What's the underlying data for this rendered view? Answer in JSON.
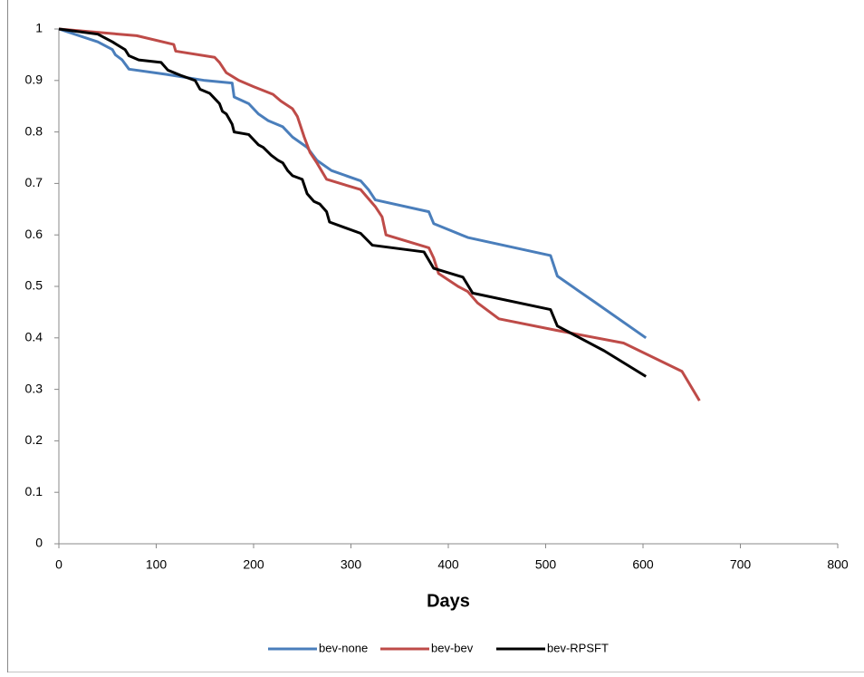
{
  "chart_data": {
    "type": "line",
    "x_label": "Days",
    "xlim": [
      0,
      800
    ],
    "xticks": [
      0,
      100,
      200,
      300,
      400,
      500,
      600,
      700,
      800
    ],
    "ylim": [
      0,
      1
    ],
    "yticks": [
      0,
      0.1,
      0.2,
      0.3,
      0.4,
      0.5,
      0.6,
      0.7,
      0.8,
      0.9,
      1
    ],
    "grid": false,
    "legend": "bottom",
    "series": [
      {
        "name": "bev-none",
        "color": "#4a7ebb",
        "x": [
          0,
          40,
          55,
          58,
          65,
          72,
          110,
          150,
          178,
          180,
          195,
          205,
          215,
          230,
          240,
          255,
          265,
          280,
          310,
          318,
          325,
          380,
          385,
          420,
          505,
          512,
          550,
          603
        ],
        "values": [
          1,
          0.975,
          0.96,
          0.95,
          0.94,
          0.922,
          0.912,
          0.9,
          0.895,
          0.868,
          0.855,
          0.835,
          0.822,
          0.81,
          0.79,
          0.77,
          0.745,
          0.725,
          0.705,
          0.688,
          0.668,
          0.645,
          0.622,
          0.595,
          0.56,
          0.52,
          0.47,
          0.4
        ]
      },
      {
        "name": "bev-bev",
        "color": "#be4b48",
        "x": [
          0,
          80,
          118,
          120,
          160,
          165,
          172,
          185,
          200,
          220,
          228,
          240,
          245,
          252,
          258,
          265,
          275,
          310,
          325,
          332,
          336,
          380,
          385,
          390,
          410,
          420,
          430,
          452,
          510,
          580,
          640,
          658
        ],
        "values": [
          1,
          0.987,
          0.97,
          0.957,
          0.945,
          0.935,
          0.915,
          0.9,
          0.888,
          0.873,
          0.86,
          0.845,
          0.83,
          0.79,
          0.76,
          0.74,
          0.708,
          0.688,
          0.655,
          0.635,
          0.6,
          0.575,
          0.555,
          0.525,
          0.5,
          0.49,
          0.468,
          0.437,
          0.415,
          0.39,
          0.335,
          0.278
        ]
      },
      {
        "name": "bev-RPSFT",
        "color": "#000000",
        "x": [
          0,
          40,
          55,
          68,
          72,
          82,
          105,
          112,
          125,
          140,
          145,
          155,
          160,
          165,
          168,
          172,
          178,
          180,
          195,
          200,
          205,
          210,
          218,
          225,
          230,
          235,
          240,
          250,
          255,
          262,
          268,
          275,
          278,
          310,
          322,
          375,
          385,
          415,
          425,
          505,
          512,
          560,
          603
        ],
        "values": [
          1,
          0.99,
          0.975,
          0.96,
          0.948,
          0.94,
          0.935,
          0.92,
          0.91,
          0.9,
          0.883,
          0.875,
          0.865,
          0.855,
          0.84,
          0.835,
          0.815,
          0.8,
          0.795,
          0.785,
          0.775,
          0.77,
          0.755,
          0.745,
          0.74,
          0.725,
          0.715,
          0.708,
          0.68,
          0.665,
          0.66,
          0.645,
          0.625,
          0.603,
          0.58,
          0.567,
          0.535,
          0.518,
          0.487,
          0.455,
          0.423,
          0.375,
          0.325
        ]
      }
    ]
  }
}
